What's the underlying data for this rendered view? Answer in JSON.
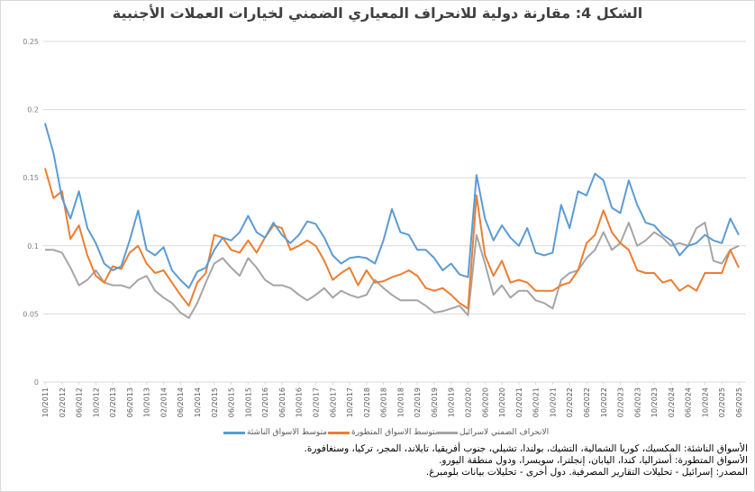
{
  "title": "الشكل 4: مقارنة دولية للانحراف المعياري الضمني لخيارات العملات الأجنبية",
  "legend": [
    {
      "label": "متوسط الاسواق الناشئة",
      "color": "#5b9bd5"
    },
    {
      "label": "متوسط الاسواق المتطورة",
      "color": "#ed7d31"
    },
    {
      "label": "الانحراف الضمني لاسرائيل",
      "color": "#a5a5a5"
    }
  ],
  "notes": [
    "الأسواق الناشئة: المكسيك، كوريا الشمالية، التشيك، بولندا، تشيلي، جنوب أفريقيا، تايلاند، المجر، تركيا، وسنغافورة.",
    "الأسواق المتطورة: أستراليا، كندا، اليابان، إنجلترا، سويسرا، ودول منطقة اليورو.",
    "المصدر: إسرائيل - تحليلات التقارير المصرفية. دول أخرى - تحليلات بيانات بلومبرغ."
  ],
  "chart_data": {
    "type": "line",
    "title": "الشكل 4: مقارنة دولية للانحراف المعياري الضمني لخيارات العملات الأجنبية",
    "xlabel": "",
    "ylabel": "",
    "ylim": [
      0,
      0.25
    ],
    "yticks": [
      "0",
      "0.05",
      "0.1",
      "0.15",
      "0.2",
      "0.25"
    ],
    "grid": true,
    "legend_position": "bottom",
    "x": [
      "10/2011",
      "12/2011",
      "02/2012",
      "04/2012",
      "06/2012",
      "08/2012",
      "10/2012",
      "12/2012",
      "02/2013",
      "04/2013",
      "06/2013",
      "08/2013",
      "10/2013",
      "12/2013",
      "02/2014",
      "04/2014",
      "06/2014",
      "08/2014",
      "10/2014",
      "12/2014",
      "02/2015",
      "04/2015",
      "06/2015",
      "08/2015",
      "10/2015",
      "12/2015",
      "02/2016",
      "04/2016",
      "06/2016",
      "08/2016",
      "10/2016",
      "12/2016",
      "02/2017",
      "04/2017",
      "06/2017",
      "08/2017",
      "10/2017",
      "12/2017",
      "02/2018",
      "04/2018",
      "06/2018",
      "08/2018",
      "10/2018",
      "12/2018",
      "02/2019",
      "04/2019",
      "06/2019",
      "08/2019",
      "10/2019",
      "12/2019",
      "02/2020",
      "04/2020",
      "06/2020",
      "08/2020",
      "10/2020",
      "12/2020",
      "02/2021",
      "04/2021",
      "06/2021",
      "08/2021",
      "10/2021",
      "12/2021",
      "02/2022",
      "04/2022",
      "06/2022",
      "08/2022",
      "10/2022",
      "12/2022",
      "02/2023",
      "04/2023",
      "06/2023",
      "08/2023",
      "10/2023",
      "12/2023",
      "02/2024",
      "04/2024",
      "06/2024",
      "08/2024",
      "10/2024",
      "12/2024",
      "02/2025",
      "04/2025",
      "06/2025"
    ],
    "xtick_labels": [
      "10/2011",
      "02/2012",
      "06/2012",
      "10/2012",
      "02/2013",
      "06/2013",
      "10/2013",
      "02/2014",
      "06/2014",
      "10/2014",
      "02/2015",
      "06/2015",
      "10/2015",
      "02/2016",
      "06/2016",
      "10/2016",
      "02/2017",
      "06/2017",
      "10/2017",
      "02/2018",
      "06/2018",
      "10/2018",
      "02/2019",
      "06/2019",
      "10/2019",
      "02/2020",
      "06/2020",
      "10/2020",
      "02/2021",
      "06/2021",
      "10/2021",
      "02/2022",
      "06/2022",
      "10/2022",
      "02/2023",
      "06/2023",
      "10/2023",
      "02/2024",
      "06/2024",
      "10/2024",
      "02/2025",
      "06/2025"
    ],
    "series": [
      {
        "name": "متوسط الاسواق الناشئة",
        "color": "#5b9bd5",
        "values": [
          0.19,
          0.168,
          0.135,
          0.12,
          0.14,
          0.113,
          0.102,
          0.087,
          0.082,
          0.085,
          0.104,
          0.126,
          0.097,
          0.093,
          0.099,
          0.082,
          0.075,
          0.069,
          0.081,
          0.084,
          0.097,
          0.106,
          0.104,
          0.11,
          0.122,
          0.11,
          0.106,
          0.117,
          0.108,
          0.102,
          0.108,
          0.118,
          0.116,
          0.106,
          0.093,
          0.087,
          0.091,
          0.092,
          0.091,
          0.087,
          0.104,
          0.127,
          0.11,
          0.108,
          0.097,
          0.097,
          0.091,
          0.082,
          0.087,
          0.079,
          0.077,
          0.152,
          0.12,
          0.104,
          0.115,
          0.106,
          0.1,
          0.113,
          0.095,
          0.093,
          0.095,
          0.13,
          0.113,
          0.14,
          0.137,
          0.153,
          0.148,
          0.128,
          0.124,
          0.148,
          0.13,
          0.117,
          0.115,
          0.108,
          0.104,
          0.093,
          0.1,
          0.102,
          0.108,
          0.104,
          0.102,
          0.12,
          0.108
        ]
      },
      {
        "name": "متوسط الاسواق المتطورة",
        "color": "#ed7d31",
        "values": [
          0.157,
          0.135,
          0.14,
          0.105,
          0.115,
          0.093,
          0.078,
          0.073,
          0.085,
          0.083,
          0.095,
          0.1,
          0.087,
          0.08,
          0.082,
          0.073,
          0.064,
          0.056,
          0.073,
          0.08,
          0.108,
          0.106,
          0.097,
          0.095,
          0.104,
          0.095,
          0.106,
          0.115,
          0.113,
          0.097,
          0.1,
          0.104,
          0.1,
          0.089,
          0.075,
          0.08,
          0.084,
          0.071,
          0.082,
          0.073,
          0.074,
          0.077,
          0.079,
          0.082,
          0.078,
          0.069,
          0.067,
          0.069,
          0.064,
          0.058,
          0.054,
          0.137,
          0.093,
          0.078,
          0.089,
          0.073,
          0.075,
          0.073,
          0.067,
          0.067,
          0.067,
          0.071,
          0.073,
          0.082,
          0.102,
          0.108,
          0.126,
          0.11,
          0.102,
          0.097,
          0.082,
          0.08,
          0.08,
          0.073,
          0.075,
          0.067,
          0.071,
          0.067,
          0.08,
          0.08,
          0.08,
          0.097,
          0.084
        ]
      },
      {
        "name": "الانحراف الضمني لاسرائيل",
        "color": "#a5a5a5",
        "values": [
          0.097,
          0.097,
          0.095,
          0.084,
          0.071,
          0.075,
          0.082,
          0.073,
          0.071,
          0.071,
          0.069,
          0.075,
          0.078,
          0.067,
          0.062,
          0.058,
          0.051,
          0.047,
          0.058,
          0.073,
          0.087,
          0.091,
          0.084,
          0.078,
          0.091,
          0.084,
          0.075,
          0.071,
          0.071,
          0.069,
          0.064,
          0.06,
          0.064,
          0.069,
          0.062,
          0.067,
          0.064,
          0.062,
          0.064,
          0.075,
          0.069,
          0.064,
          0.06,
          0.06,
          0.06,
          0.056,
          0.051,
          0.052,
          0.054,
          0.056,
          0.049,
          0.108,
          0.087,
          0.064,
          0.071,
          0.062,
          0.067,
          0.067,
          0.06,
          0.058,
          0.054,
          0.075,
          0.08,
          0.082,
          0.091,
          0.097,
          0.11,
          0.097,
          0.102,
          0.117,
          0.1,
          0.104,
          0.11,
          0.106,
          0.1,
          0.102,
          0.1,
          0.113,
          0.117,
          0.089,
          0.087,
          0.097,
          0.1
        ]
      }
    ]
  }
}
